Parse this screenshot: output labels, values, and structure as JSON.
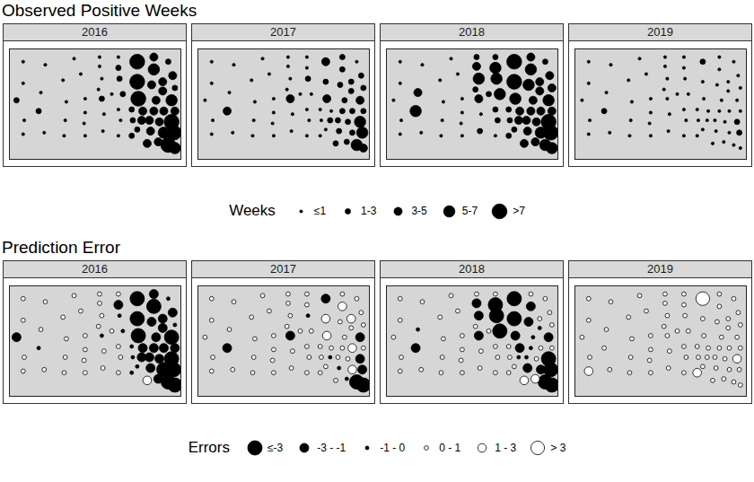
{
  "chart_data": [
    {
      "type": "scatter",
      "title": "Observed Positive Weeks",
      "legend_title": "Weeks",
      "legend": "bottom",
      "legend_labels": [
        "≤1",
        "1-3",
        "3-5",
        "5-7",
        ">7"
      ],
      "breaks": [
        1,
        3,
        5,
        7
      ],
      "colors": [
        "#000000",
        "#000000",
        "#000000",
        "#000000",
        "#000000"
      ],
      "tick_labels": false,
      "xlim": [
        -104.1,
        -96.4
      ],
      "ylim": [
        42.45,
        46.0
      ],
      "x": [
        -103.5,
        -102.5,
        -101.2,
        -103.5,
        -102.7,
        -101.7,
        -100.9,
        -103.8,
        -102.8,
        -103.45,
        -103.5,
        -102.55,
        -101.6,
        -101.65,
        -101.55,
        -100.7,
        -100.75,
        -100.7,
        -100.7,
        -99.85,
        -99.9,
        -99.2,
        -100.1,
        -99.95,
        -99.95,
        -100.05,
        -100.05,
        -99.2,
        -99.2,
        -99.15,
        -99.5,
        -99.0,
        -99.2,
        -98.6,
        -99.1,
        -98.55,
        -98.6,
        -98.35,
        -97.9,
        -97.75,
        -98.15,
        -97.8,
        -98.1,
        -98.3,
        -98.35,
        -98.35,
        -97.6,
        -96.95,
        -97.6,
        -96.75,
        -97.2,
        -97.7,
        -96.65,
        -97.2,
        -97.5,
        -96.8,
        -97.6,
        -97.15,
        -96.65,
        -97.35,
        -96.8,
        -97.15,
        -96.7,
        -96.95,
        -96.65,
        -97.4
      ],
      "y": [
        45.6,
        45.5,
        45.7,
        44.9,
        44.6,
        45.0,
        45.2,
        44.35,
        44.0,
        43.7,
        43.25,
        43.3,
        43.7,
        43.2,
        44.3,
        43.95,
        43.6,
        43.2,
        44.4,
        43.9,
        43.35,
        43.2,
        44.7,
        44.4,
        45.05,
        45.45,
        45.75,
        45.75,
        45.4,
        45.05,
        44.55,
        44.55,
        44.05,
        44.05,
        43.7,
        43.7,
        43.2,
        43.4,
        42.95,
        43.35,
        43.7,
        43.7,
        44.0,
        44.4,
        44.95,
        45.6,
        45.75,
        45.6,
        45.35,
        45.15,
        44.95,
        44.85,
        44.75,
        44.65,
        44.35,
        44.35,
        44.0,
        44.0,
        44.0,
        43.65,
        43.65,
        43.3,
        43.3,
        42.9,
        42.8,
        43.0
      ],
      "panels": [
        {
          "title": "2016",
          "values": [
            0,
            0,
            0,
            0,
            0,
            0,
            0,
            2,
            2,
            0,
            0,
            0,
            0,
            0,
            0,
            0,
            0,
            0,
            0,
            0,
            0,
            0,
            0,
            2,
            0,
            0,
            0,
            0,
            2,
            2,
            0,
            2,
            0,
            2,
            0,
            2,
            2,
            2,
            4,
            4,
            4,
            4,
            4,
            8,
            8,
            8,
            4,
            2,
            6,
            4,
            4,
            4,
            2,
            4,
            4,
            6,
            4,
            4,
            4,
            4,
            8,
            6,
            8,
            8,
            6,
            4
          ]
        },
        {
          "title": "2017",
          "values": [
            0,
            0,
            0,
            0,
            0,
            0,
            0,
            0,
            4,
            0,
            0,
            0,
            0,
            0,
            0,
            0,
            0,
            0,
            0,
            0,
            0,
            0,
            0,
            4,
            0,
            0,
            0,
            0,
            0,
            2,
            0,
            0,
            0,
            0,
            0,
            0,
            0,
            0,
            2,
            2,
            2,
            2,
            0,
            4,
            2,
            4,
            2,
            0,
            2,
            2,
            2,
            2,
            2,
            2,
            2,
            4,
            2,
            2,
            2,
            2,
            6,
            2,
            6,
            6,
            4,
            2
          ]
        },
        {
          "title": "2018",
          "values": [
            0,
            0,
            0,
            0,
            4,
            0,
            0,
            0,
            6,
            0,
            0,
            0,
            0,
            0,
            0,
            0,
            0,
            0,
            0,
            0,
            2,
            0,
            2,
            4,
            6,
            4,
            2,
            2,
            6,
            6,
            2,
            6,
            2,
            2,
            2,
            2,
            2,
            2,
            4,
            4,
            4,
            4,
            4,
            6,
            8,
            8,
            4,
            2,
            6,
            4,
            4,
            6,
            4,
            4,
            4,
            6,
            4,
            4,
            4,
            4,
            8,
            6,
            8,
            6,
            6,
            4
          ]
        },
        {
          "title": "2019",
          "values": [
            0,
            0,
            0,
            0,
            0,
            0,
            0,
            0,
            2,
            0,
            0,
            0,
            0,
            0,
            0,
            0,
            0,
            0,
            0,
            0,
            0,
            0,
            0,
            0,
            0,
            0,
            0,
            0,
            0,
            0,
            0,
            0,
            0,
            0,
            0,
            0,
            0,
            0,
            0,
            0,
            0,
            0,
            0,
            0,
            0,
            2,
            0,
            0,
            0,
            0,
            0,
            0,
            0,
            0,
            0,
            0,
            0,
            0,
            0,
            0,
            2,
            0,
            2,
            0,
            0,
            0
          ]
        }
      ]
    },
    {
      "type": "scatter",
      "title": "Prediction Error",
      "legend_title": "Errors",
      "legend": "bottom",
      "legend_labels": [
        "≤-3",
        "-3 - -1",
        "-1 - 0",
        "0 - 1",
        "1 - 3",
        "> 3"
      ],
      "breaks": [
        -3,
        -1,
        0,
        1,
        3
      ],
      "colors": [
        "#000000",
        "#000000",
        "#000000",
        "#ffffff",
        "#ffffff",
        "#ffffff"
      ],
      "tick_labels": false,
      "xlim": [
        -104.1,
        -96.4
      ],
      "ylim": [
        42.45,
        46.0
      ],
      "x": [
        -103.5,
        -102.5,
        -101.2,
        -103.5,
        -102.7,
        -101.7,
        -100.9,
        -103.8,
        -102.8,
        -103.45,
        -103.5,
        -102.55,
        -101.6,
        -101.65,
        -101.55,
        -100.7,
        -100.75,
        -100.7,
        -100.7,
        -99.85,
        -99.9,
        -99.2,
        -100.1,
        -99.95,
        -99.95,
        -100.05,
        -100.05,
        -99.2,
        -99.2,
        -99.15,
        -99.5,
        -99.0,
        -99.2,
        -98.6,
        -99.1,
        -98.55,
        -98.6,
        -98.35,
        -97.9,
        -97.75,
        -98.15,
        -97.8,
        -98.1,
        -98.3,
        -98.35,
        -98.35,
        -97.6,
        -96.95,
        -97.6,
        -96.75,
        -97.2,
        -97.7,
        -96.65,
        -97.2,
        -97.5,
        -96.8,
        -97.6,
        -97.15,
        -96.65,
        -97.35,
        -96.8,
        -97.15,
        -96.7,
        -96.95,
        -96.65,
        -97.4
      ],
      "y": [
        45.6,
        45.5,
        45.7,
        44.9,
        44.6,
        45.0,
        45.2,
        44.35,
        44.0,
        43.7,
        43.25,
        43.3,
        43.7,
        43.2,
        44.3,
        43.95,
        43.6,
        43.2,
        44.4,
        43.9,
        43.35,
        43.2,
        44.7,
        44.4,
        45.05,
        45.45,
        45.75,
        45.75,
        45.4,
        45.05,
        44.55,
        44.55,
        44.05,
        44.05,
        43.7,
        43.7,
        43.2,
        43.4,
        42.95,
        43.35,
        43.7,
        43.7,
        44.0,
        44.4,
        44.95,
        45.6,
        45.75,
        45.6,
        45.35,
        45.15,
        44.95,
        44.85,
        44.75,
        44.65,
        44.35,
        44.35,
        44.0,
        44.0,
        44.0,
        43.65,
        43.65,
        43.3,
        43.3,
        42.9,
        42.8,
        43.0
      ],
      "panels": [
        {
          "title": "2016",
          "values": [
            0.5,
            0.5,
            0.5,
            0.5,
            0.5,
            0.5,
            0.5,
            -2,
            -0.5,
            0.5,
            0.5,
            0.5,
            0.5,
            0.5,
            0.5,
            0.5,
            0.5,
            0.5,
            0.5,
            0.5,
            0.5,
            0.5,
            0.5,
            -0.5,
            0.5,
            0.5,
            0.5,
            0.5,
            -2,
            -0.5,
            0.5,
            -0.5,
            0.5,
            -0.5,
            0.5,
            -0.5,
            -0.5,
            -0.5,
            2,
            -2,
            -2,
            -2,
            -2,
            -4,
            -4,
            -4,
            -2,
            -0.5,
            -4,
            -2,
            -2,
            -2,
            -0.5,
            -2,
            -2,
            -4,
            -2,
            -2,
            -2,
            -2,
            -4,
            -4,
            -4,
            -4,
            -4,
            -2
          ]
        },
        {
          "title": "2017",
          "values": [
            0.5,
            0.5,
            0.5,
            0.5,
            0.5,
            0.5,
            0.5,
            0.5,
            -2,
            0.5,
            0.5,
            0.5,
            0.5,
            0.5,
            0.5,
            0.5,
            0.5,
            0.5,
            0.5,
            0.5,
            0.5,
            0.5,
            0.5,
            -2,
            0.5,
            0.5,
            0.5,
            0.5,
            0.5,
            -0.5,
            0.5,
            0.5,
            0.5,
            0.5,
            0.5,
            0.5,
            0.5,
            0.5,
            0.5,
            -0.5,
            -0.5,
            0.5,
            0.5,
            2,
            2,
            -2,
            0.5,
            0.5,
            2,
            0.5,
            2,
            0.5,
            0.5,
            0.5,
            0.5,
            -2,
            0.5,
            2,
            0.5,
            0.5,
            -2,
            2,
            -2,
            -4,
            -4,
            -0.5
          ]
        },
        {
          "title": "2018",
          "values": [
            0.5,
            0.5,
            0.5,
            0.5,
            -0.5,
            0.5,
            0.5,
            0.5,
            -2,
            0.5,
            0.5,
            0.5,
            0.5,
            0.5,
            0.5,
            0.5,
            0.5,
            0.5,
            0.5,
            0.5,
            0.5,
            0.5,
            0.5,
            -2,
            -2,
            -2,
            0.5,
            0.5,
            -4,
            -4,
            0.5,
            -4,
            0.5,
            0.5,
            0.5,
            0.5,
            0.5,
            0.5,
            2,
            -2,
            -0.5,
            -0.5,
            -2,
            -2,
            -4,
            -4,
            0.5,
            0.5,
            -2,
            0.5,
            0.5,
            -2,
            0.5,
            -0.5,
            -0.5,
            -2,
            -0.5,
            0.5,
            0.5,
            0.5,
            -4,
            -2,
            -4,
            -4,
            -4,
            2
          ]
        },
        {
          "title": "2019",
          "values": [
            0.5,
            0.5,
            0.5,
            0.5,
            0.5,
            0.5,
            0.5,
            0.5,
            0.5,
            0.5,
            2,
            0.5,
            0.5,
            0.5,
            0.5,
            0.5,
            0.5,
            0.5,
            0.5,
            0.5,
            0.5,
            0.5,
            0.5,
            0.5,
            0.5,
            0.5,
            0.5,
            0.5,
            0.5,
            0.5,
            0.5,
            0.5,
            0.5,
            0.5,
            0.5,
            0.5,
            2,
            0.5,
            0.5,
            0.5,
            0.5,
            0.5,
            0.5,
            0.5,
            0.5,
            4,
            0.5,
            0.5,
            0.5,
            0.5,
            0.5,
            0.5,
            0.5,
            0.5,
            0.5,
            0.5,
            0.5,
            0.5,
            0.5,
            0.5,
            2,
            0.5,
            0.5,
            0.5,
            0.5,
            0.5
          ]
        }
      ]
    }
  ]
}
